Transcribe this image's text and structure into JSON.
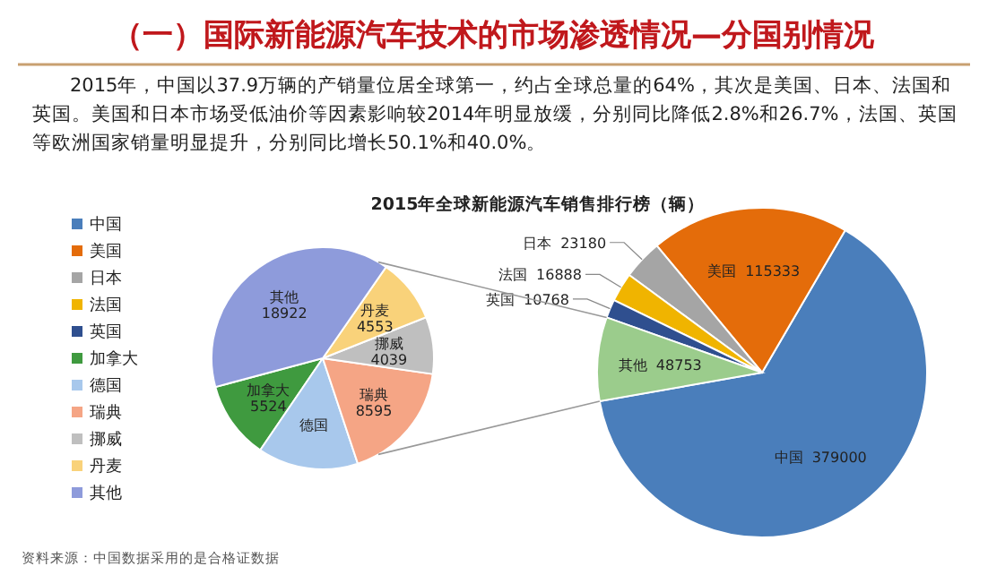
{
  "chart_data": [
    {
      "type": "pie",
      "title": "（一）国际新能源汽车技术的市场渗透情况—分国别情况",
      "subtitle": "2015年，中国以37.9万辆的产销量位居全球第一，约占全球总量的64%，其次是美国、日本、法国和英国。美国和日本市场受低油价等因素影响较2014年明显放缓，分别同比降低2.8%和26.7%，法国、英国等欧洲国家销量明显提升，分别同比增长50.1%和40.0%。",
      "categories": [
        "加拿大",
        "德国",
        "瑞典",
        "挪威",
        "丹麦",
        "其他"
      ],
      "values": [
        5524,
        7120,
        8595,
        4039,
        4553,
        18922
      ],
      "value_labels": [
        "5524",
        null,
        "8595",
        "4039",
        "4553",
        "18922"
      ],
      "colors": [
        "#3f9a3f",
        "#a8c8ec",
        "#f5a585",
        "#bfbfbf",
        "#f9d27a",
        "#8e9bdb"
      ],
      "legend": "left",
      "annotations": [
        "资料来源：中国数据采用的是合格证数据"
      ]
    },
    {
      "type": "pie",
      "title": "2015年全球新能源汽车销售排行榜（辆）",
      "categories": [
        "中国",
        "美国",
        "日本",
        "法国",
        "英国",
        "其他"
      ],
      "values": [
        379000,
        115333,
        23180,
        16888,
        10768,
        48753
      ],
      "colors": [
        "#4a7ebb",
        "#e46c0a",
        "#a5a5a5",
        "#f0b400",
        "#2f4f8f",
        "#9bcc8c"
      ],
      "data_labels": true,
      "legend": "left"
    }
  ]
}
